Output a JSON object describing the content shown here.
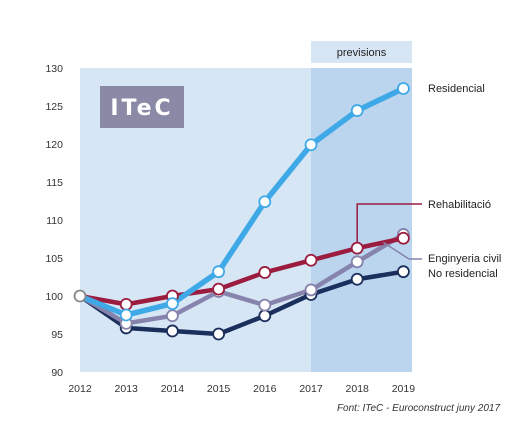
{
  "chart_data": {
    "type": "line",
    "x": [
      "2012",
      "2013",
      "2014",
      "2015",
      "2016",
      "2017",
      "2018",
      "2019"
    ],
    "ylim": [
      90,
      130
    ],
    "yticks": [
      90,
      95,
      100,
      105,
      110,
      115,
      120,
      125,
      130
    ],
    "forecast_band": {
      "label": "previsions",
      "from": "2017",
      "to": "2019"
    },
    "grid": false,
    "series": [
      {
        "name": "Residencial",
        "color": "#3fa9e8",
        "values": [
          100,
          97.5,
          99.0,
          103.2,
          112.4,
          119.9,
          124.4,
          127.3
        ]
      },
      {
        "name": "Rehabilitació",
        "color": "#9b1c3f",
        "values": [
          100,
          98.9,
          100.0,
          100.9,
          103.1,
          104.7,
          106.3,
          107.6
        ]
      },
      {
        "name": "Enginyeria civil",
        "color": "#8683ad",
        "values": [
          100,
          96.4,
          97.4,
          100.6,
          98.8,
          100.8,
          104.5,
          108.1
        ]
      },
      {
        "name": "No residencial",
        "color": "#1b2f5c",
        "values": [
          100,
          95.8,
          95.4,
          95.0,
          97.4,
          100.2,
          102.2,
          103.2
        ]
      }
    ],
    "source": "Font: ITeC - Euroconstruct juny 2017"
  },
  "logo": {
    "text": "ITeC",
    "color": "#8a8aa6"
  },
  "colors": {
    "plot_background": "#d6e6f4",
    "forecast_background": "#bcd5ee"
  }
}
